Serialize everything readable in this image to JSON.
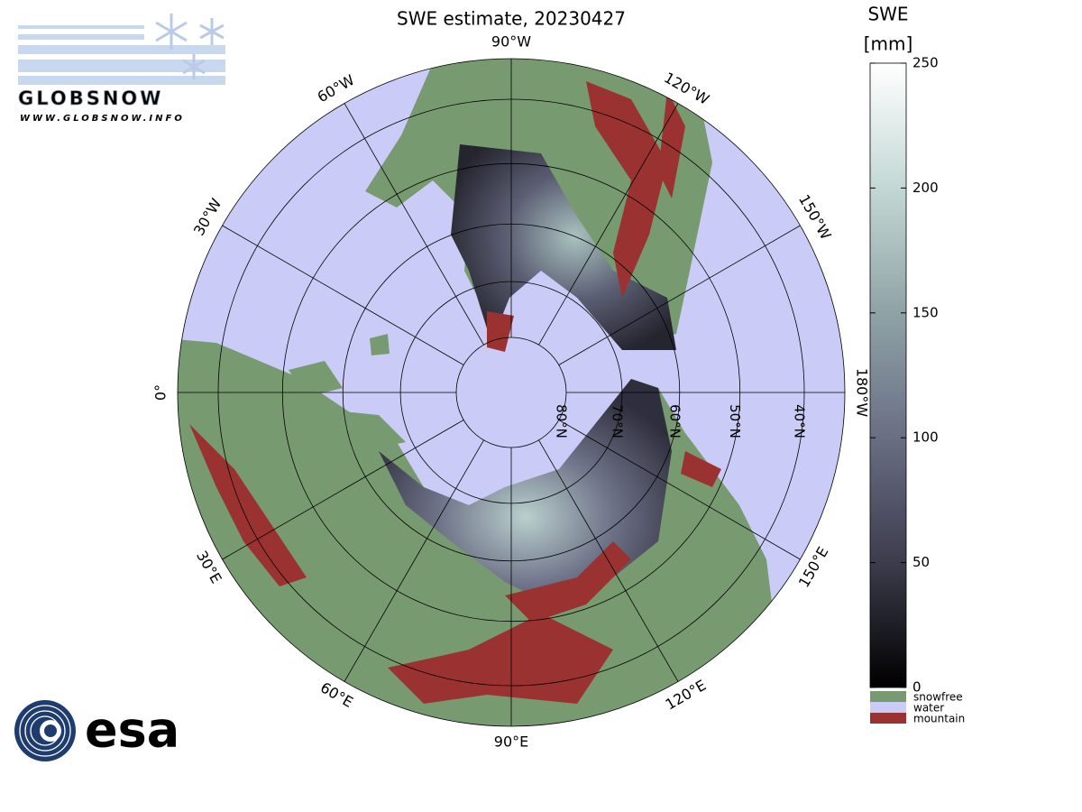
{
  "map": {
    "title": "SWE estimate, 20230427",
    "meridians": [
      {
        "lon": 0,
        "label": "0°"
      },
      {
        "lon": -30,
        "label": "30°W"
      },
      {
        "lon": -60,
        "label": "60°W"
      },
      {
        "lon": -90,
        "label": "90°W"
      },
      {
        "lon": -120,
        "label": "120°W"
      },
      {
        "lon": -150,
        "label": "150°W"
      },
      {
        "lon": 180,
        "label": "180°W"
      },
      {
        "lon": 150,
        "label": "150°E"
      },
      {
        "lon": 120,
        "label": "120°E"
      },
      {
        "lon": 90,
        "label": "90°E"
      },
      {
        "lon": 60,
        "label": "60°E"
      },
      {
        "lon": 30,
        "label": "30°E"
      }
    ],
    "parallels": [
      {
        "lat": 80,
        "label": "80°N"
      },
      {
        "lat": 70,
        "label": "70°N"
      },
      {
        "lat": 60,
        "label": "60°N"
      },
      {
        "lat": 50,
        "label": "50°N"
      },
      {
        "lat": 40,
        "label": "40°N"
      }
    ],
    "colorbar": {
      "title": "SWE",
      "unit": "[mm]",
      "clim": [
        0,
        250
      ],
      "ticks": [
        0,
        50,
        100,
        150,
        200,
        250
      ],
      "colormap": [
        "#000000",
        "#3c3c4c",
        "#6a6e84",
        "#8fa3a6",
        "#c3d8d4",
        "#ffffff"
      ]
    },
    "legend": [
      {
        "name": "snowfree",
        "color": "#789a70"
      },
      {
        "name": "water",
        "color": "#cbcbf7"
      },
      {
        "name": "mountain",
        "color": "#9b3232"
      }
    ],
    "logos": {
      "globsnow": "GLOBSNOW",
      "globsnow_url": "WWW.GLOBSNOW.INFO",
      "esa": "esa"
    }
  }
}
